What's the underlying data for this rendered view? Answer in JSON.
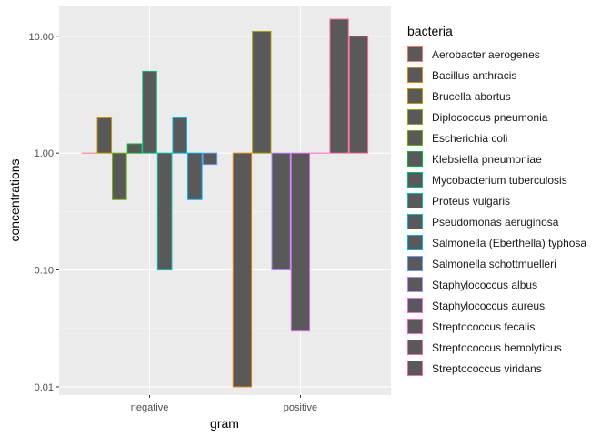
{
  "chart_data": {
    "type": "bar",
    "log_y": true,
    "xlabel": "gram",
    "ylabel": "concentrations",
    "categories": [
      "negative",
      "positive"
    ],
    "y_ticks": [
      {
        "value": 0.01,
        "label": "0.01"
      },
      {
        "value": 0.1,
        "label": "0.10"
      },
      {
        "value": 1,
        "label": "1.00"
      },
      {
        "value": 10,
        "label": "10.00"
      }
    ],
    "ylim": [
      0.0085,
      18
    ],
    "baseline": 1,
    "grid": true,
    "legend": {
      "title": "bacteria",
      "position": "right",
      "items": [
        {
          "name": "Aerobacter aerogenes",
          "color": "#F8766D"
        },
        {
          "name": "Bacillus anthracis",
          "color": "#E58700"
        },
        {
          "name": "Brucella abortus",
          "color": "#C99800"
        },
        {
          "name": "Diplococcus pneumonia",
          "color": "#A3A500"
        },
        {
          "name": "Escherichia coli",
          "color": "#6BB100"
        },
        {
          "name": "Klebsiella pneumoniae",
          "color": "#00BA38"
        },
        {
          "name": "Mycobacterium tuberculosis",
          "color": "#00BF7D"
        },
        {
          "name": "Proteus vulgaris",
          "color": "#00C0AF"
        },
        {
          "name": "Pseudomonas aeruginosa",
          "color": "#00BCD8"
        },
        {
          "name": "Salmonella (Eberthella) typhosa",
          "color": "#00B0F6"
        },
        {
          "name": "Salmonella schottmuelleri",
          "color": "#619CFF"
        },
        {
          "name": "Staphylococcus albus",
          "color": "#B983FF"
        },
        {
          "name": "Staphylococcus aureus",
          "color": "#E76BF3"
        },
        {
          "name": "Streptococcus fecalis",
          "color": "#FD61D1"
        },
        {
          "name": "Streptococcus hemolyticus",
          "color": "#FF67A4"
        },
        {
          "name": "Streptococcus viridans",
          "color": "#FF6C91"
        }
      ]
    },
    "groups": [
      {
        "category": "negative",
        "bars": [
          {
            "bacteria": "Aerobacter aerogenes",
            "value": 1.0
          },
          {
            "bacteria": "Brucella abortus",
            "value": 2.0
          },
          {
            "bacteria": "Escherichia coli",
            "value": 0.4
          },
          {
            "bacteria": "Klebsiella pneumoniae",
            "value": 1.2
          },
          {
            "bacteria": "Mycobacterium tuberculosis",
            "value": 5.0
          },
          {
            "bacteria": "Proteus vulgaris",
            "value": 0.1
          },
          {
            "bacteria": "Pseudomonas aeruginosa",
            "value": 2.0
          },
          {
            "bacteria": "Salmonella (Eberthella) typhosa",
            "value": 0.4
          },
          {
            "bacteria": "Salmonella schottmuelleri",
            "value": 0.8
          }
        ]
      },
      {
        "category": "positive",
        "bars": [
          {
            "bacteria": "Bacillus anthracis",
            "value": 0.01
          },
          {
            "bacteria": "Diplococcus pneumonia",
            "value": 11.0
          },
          {
            "bacteria": "Staphylococcus albus",
            "value": 0.1
          },
          {
            "bacteria": "Staphylococcus aureus",
            "value": 0.03
          },
          {
            "bacteria": "Streptococcus fecalis",
            "value": 1.0
          },
          {
            "bacteria": "Streptococcus hemolyticus",
            "value": 14.0
          },
          {
            "bacteria": "Streptococcus viridans",
            "value": 10.0
          }
        ]
      }
    ]
  }
}
